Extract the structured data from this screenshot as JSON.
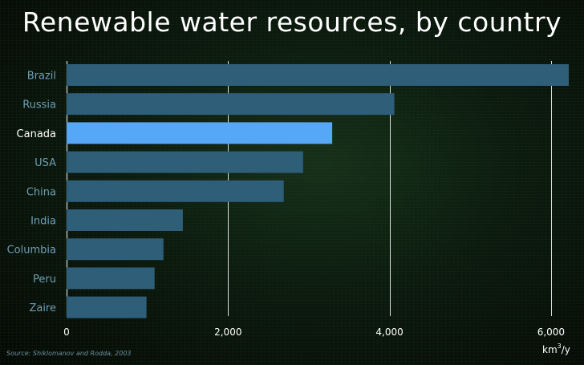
{
  "chart_data": {
    "type": "bar",
    "orientation": "horizontal",
    "title": "Renewable water resources, by country",
    "categories": [
      "Brazil",
      "Russia",
      "Canada",
      "USA",
      "China",
      "India",
      "Columbia",
      "Peru",
      "Zaire"
    ],
    "values": [
      6220,
      4060,
      3290,
      2930,
      2690,
      1440,
      1200,
      1090,
      990
    ],
    "highlight": "Canada",
    "xlim": [
      0,
      6200
    ],
    "xticks": [
      0,
      2000,
      4000,
      6000
    ],
    "xtick_labels": [
      "0",
      "2,000",
      "4,000",
      "6,000"
    ],
    "xunit": "km",
    "xunit_superscript": "3",
    "xunit_suffix": "/y",
    "grid": true,
    "source": "Source: Shiklomanov and Rodda, 2003",
    "colors": {
      "bar": "#2f5e79",
      "bar_highlight": "#56a7f5",
      "label": "#6e9fb5",
      "label_highlight": "#ffffff",
      "grid": "#ffffff"
    }
  }
}
